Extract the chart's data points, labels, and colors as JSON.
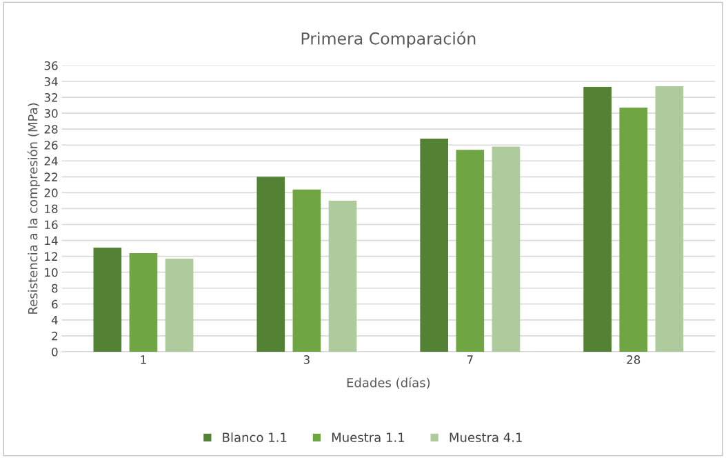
{
  "chart_data": {
    "type": "bar",
    "title": "Primera Comparación",
    "xlabel": "Edades (días)",
    "ylabel": "Resistencia a la compresión (MPa)",
    "categories": [
      "1",
      "3",
      "7",
      "28"
    ],
    "series": [
      {
        "name": "Blanco 1.1",
        "color": "#548235",
        "values": [
          13.1,
          22.0,
          26.8,
          33.3
        ]
      },
      {
        "name": "Muestra 1.1",
        "color": "#70a543",
        "values": [
          12.4,
          20.4,
          25.4,
          30.7
        ]
      },
      {
        "name": "Muestra 4.1",
        "color": "#adcb9c",
        "values": [
          11.7,
          19.0,
          25.8,
          33.4
        ]
      }
    ],
    "ylim": [
      0,
      36
    ],
    "yticks": [
      0,
      2,
      4,
      6,
      8,
      10,
      12,
      14,
      16,
      18,
      20,
      22,
      24,
      26,
      28,
      30,
      32,
      34,
      36
    ],
    "grid": "y",
    "legend": "bottom"
  }
}
